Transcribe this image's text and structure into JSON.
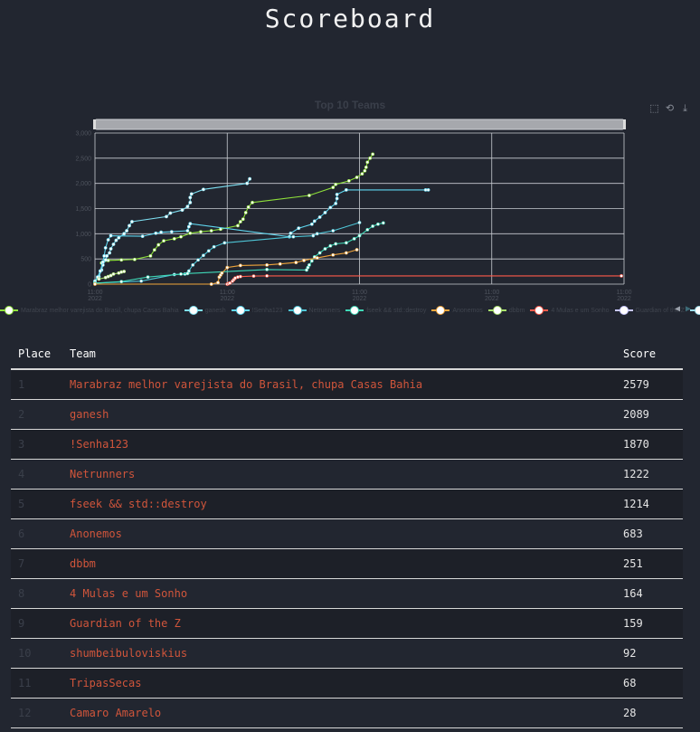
{
  "header": {
    "title": "Scoreboard"
  },
  "chart": {
    "toolbox_icons": [
      "zoom-icon",
      "zoom-reset-icon",
      "download-icon"
    ],
    "legend_nav": {
      "prev": "◀",
      "next": "▶"
    }
  },
  "chart_data": {
    "type": "line",
    "title": "Top 10 Teams",
    "xlabel": "",
    "ylabel": "",
    "ylim": [
      0,
      3000
    ],
    "xlim": [
      0,
      400
    ],
    "y_ticks": [
      "3,000",
      "2,500",
      "2,000",
      "1,500",
      "1,000",
      "500",
      "0"
    ],
    "y_tick_values": [
      3000,
      2500,
      2000,
      1500,
      1000,
      500,
      0
    ],
    "x_ticks": [
      {
        "value": 0,
        "line1": "11:00",
        "line2": "2022"
      },
      {
        "value": 100,
        "line1": "11:00",
        "line2": "2022"
      },
      {
        "value": 200,
        "line1": "11:00",
        "line2": "2022"
      },
      {
        "value": 300,
        "line1": "11:00",
        "line2": "2022"
      },
      {
        "value": 400,
        "line1": "11:00",
        "line2": "2022"
      }
    ],
    "grid": true,
    "legend_position": "bottom",
    "series": [
      {
        "name": "Marabraz melhor varejista do Brasil, chupa Casas Bahia",
        "color": "#8ee03a",
        "points": [
          [
            5,
            420
          ],
          [
            10,
            470
          ],
          [
            20,
            480
          ],
          [
            30,
            490
          ],
          [
            42,
            560
          ],
          [
            45,
            680
          ],
          [
            48,
            780
          ],
          [
            52,
            860
          ],
          [
            60,
            900
          ],
          [
            65,
            940
          ],
          [
            72,
            1010
          ],
          [
            80,
            1040
          ],
          [
            88,
            1060
          ],
          [
            95,
            1090
          ],
          [
            108,
            1160
          ],
          [
            110,
            1240
          ],
          [
            112,
            1290
          ],
          [
            114,
            1420
          ],
          [
            116,
            1530
          ],
          [
            119,
            1620
          ],
          [
            162,
            1760
          ],
          [
            180,
            1920
          ],
          [
            182,
            1980
          ],
          [
            192,
            2050
          ],
          [
            198,
            2120
          ],
          [
            202,
            2190
          ],
          [
            204,
            2250
          ],
          [
            205,
            2320
          ],
          [
            206,
            2420
          ],
          [
            208,
            2500
          ],
          [
            210,
            2579
          ]
        ]
      },
      {
        "name": "ganesh",
        "color": "#7ee0f2",
        "points": [
          [
            0,
            50
          ],
          [
            3,
            150
          ],
          [
            5,
            280
          ],
          [
            6,
            380
          ],
          [
            8,
            480
          ],
          [
            9,
            560
          ],
          [
            11,
            620
          ],
          [
            12,
            700
          ],
          [
            14,
            790
          ],
          [
            16,
            870
          ],
          [
            18,
            920
          ],
          [
            22,
            1000
          ],
          [
            24,
            1060
          ],
          [
            26,
            1160
          ],
          [
            28,
            1240
          ],
          [
            54,
            1340
          ],
          [
            57,
            1410
          ],
          [
            66,
            1470
          ],
          [
            70,
            1540
          ],
          [
            72,
            1620
          ],
          [
            72,
            1720
          ],
          [
            73,
            1790
          ],
          [
            82,
            1880
          ],
          [
            115,
            2000
          ],
          [
            117,
            2089
          ]
        ]
      },
      {
        "name": "!Senha123",
        "color": "#5fd7f0",
        "points": [
          [
            0,
            60
          ],
          [
            2,
            140
          ],
          [
            4,
            260
          ],
          [
            6,
            440
          ],
          [
            7,
            560
          ],
          [
            8,
            720
          ],
          [
            10,
            880
          ],
          [
            12,
            960
          ],
          [
            36,
            950
          ],
          [
            46,
            1010
          ],
          [
            50,
            1030
          ],
          [
            58,
            1040
          ],
          [
            70,
            1060
          ],
          [
            71,
            1140
          ],
          [
            72,
            1200
          ],
          [
            147,
            940
          ],
          [
            148,
            1010
          ],
          [
            154,
            1110
          ],
          [
            164,
            1190
          ],
          [
            166,
            1250
          ],
          [
            170,
            1330
          ],
          [
            174,
            1420
          ],
          [
            178,
            1520
          ],
          [
            182,
            1600
          ],
          [
            183,
            1700
          ],
          [
            183,
            1780
          ],
          [
            190,
            1870
          ],
          [
            250,
            1870
          ],
          [
            252,
            1870
          ]
        ]
      },
      {
        "name": "Netrunners",
        "color": "#4ec5d6",
        "points": [
          [
            0,
            20
          ],
          [
            35,
            60
          ],
          [
            60,
            190
          ],
          [
            68,
            200
          ],
          [
            71,
            260
          ],
          [
            74,
            380
          ],
          [
            78,
            480
          ],
          [
            82,
            570
          ],
          [
            86,
            660
          ],
          [
            90,
            740
          ],
          [
            98,
            820
          ],
          [
            150,
            940
          ],
          [
            165,
            960
          ],
          [
            168,
            1000
          ],
          [
            180,
            1060
          ],
          [
            200,
            1222
          ]
        ]
      },
      {
        "name": "fseek && std::destroy",
        "color": "#3fd8b7",
        "points": [
          [
            0,
            20
          ],
          [
            20,
            50
          ],
          [
            40,
            140
          ],
          [
            65,
            200
          ],
          [
            70,
            210
          ],
          [
            130,
            290
          ],
          [
            160,
            280
          ],
          [
            161,
            330
          ],
          [
            162,
            380
          ],
          [
            164,
            460
          ],
          [
            166,
            540
          ],
          [
            170,
            620
          ],
          [
            174,
            700
          ],
          [
            178,
            760
          ],
          [
            182,
            800
          ],
          [
            190,
            820
          ],
          [
            196,
            900
          ],
          [
            200,
            960
          ],
          [
            206,
            1080
          ],
          [
            210,
            1150
          ],
          [
            214,
            1190
          ],
          [
            218,
            1214
          ]
        ]
      },
      {
        "name": "Anonemos",
        "color": "#f2a53a",
        "points": [
          [
            0,
            0
          ],
          [
            88,
            0
          ],
          [
            93,
            30
          ],
          [
            94,
            140
          ],
          [
            95,
            180
          ],
          [
            96,
            220
          ],
          [
            100,
            330
          ],
          [
            110,
            370
          ],
          [
            130,
            380
          ],
          [
            140,
            400
          ],
          [
            152,
            430
          ],
          [
            158,
            470
          ],
          [
            168,
            520
          ],
          [
            180,
            580
          ],
          [
            190,
            620
          ],
          [
            198,
            683
          ]
        ]
      },
      {
        "name": "dbbm",
        "color": "#a8e06a",
        "points": [
          [
            3,
            100
          ],
          [
            8,
            130
          ],
          [
            10,
            150
          ],
          [
            12,
            170
          ],
          [
            14,
            200
          ],
          [
            18,
            220
          ],
          [
            20,
            240
          ],
          [
            22,
            251
          ]
        ]
      },
      {
        "name": "4 Mulas e um Sonho",
        "color": "#ff5a4a",
        "points": [
          [
            100,
            0
          ],
          [
            101,
            10
          ],
          [
            102,
            20
          ],
          [
            104,
            60
          ],
          [
            105,
            90
          ],
          [
            106,
            120
          ],
          [
            108,
            140
          ],
          [
            110,
            150
          ],
          [
            120,
            160
          ],
          [
            130,
            164
          ],
          [
            398,
            164
          ]
        ]
      },
      {
        "name": "Guardian of the Z",
        "color": "#c7c7ff",
        "points": []
      },
      {
        "name": "shumbeibuloviskius",
        "color": "#9adbe8",
        "points": []
      }
    ]
  },
  "scoreboard": {
    "columns": {
      "place": "Place",
      "team": "Team",
      "score": "Score"
    },
    "rows": [
      {
        "place": "1",
        "team": "Marabraz melhor varejista do Brasil, chupa Casas Bahia",
        "score": "2579"
      },
      {
        "place": "2",
        "team": "ganesh",
        "score": "2089"
      },
      {
        "place": "3",
        "team": "!Senha123",
        "score": "1870"
      },
      {
        "place": "4",
        "team": "Netrunners",
        "score": "1222"
      },
      {
        "place": "5",
        "team": "fseek && std::destroy",
        "score": "1214"
      },
      {
        "place": "6",
        "team": "Anonemos",
        "score": "683"
      },
      {
        "place": "7",
        "team": "dbbm",
        "score": "251"
      },
      {
        "place": "8",
        "team": "4 Mulas e um Sonho",
        "score": "164"
      },
      {
        "place": "9",
        "team": "Guardian of the Z",
        "score": "159"
      },
      {
        "place": "10",
        "team": "shumbeibuloviskius",
        "score": "92"
      },
      {
        "place": "11",
        "team": "TripasSecas",
        "score": "68"
      },
      {
        "place": "12",
        "team": "Camaro Amarelo",
        "score": "28"
      }
    ]
  }
}
